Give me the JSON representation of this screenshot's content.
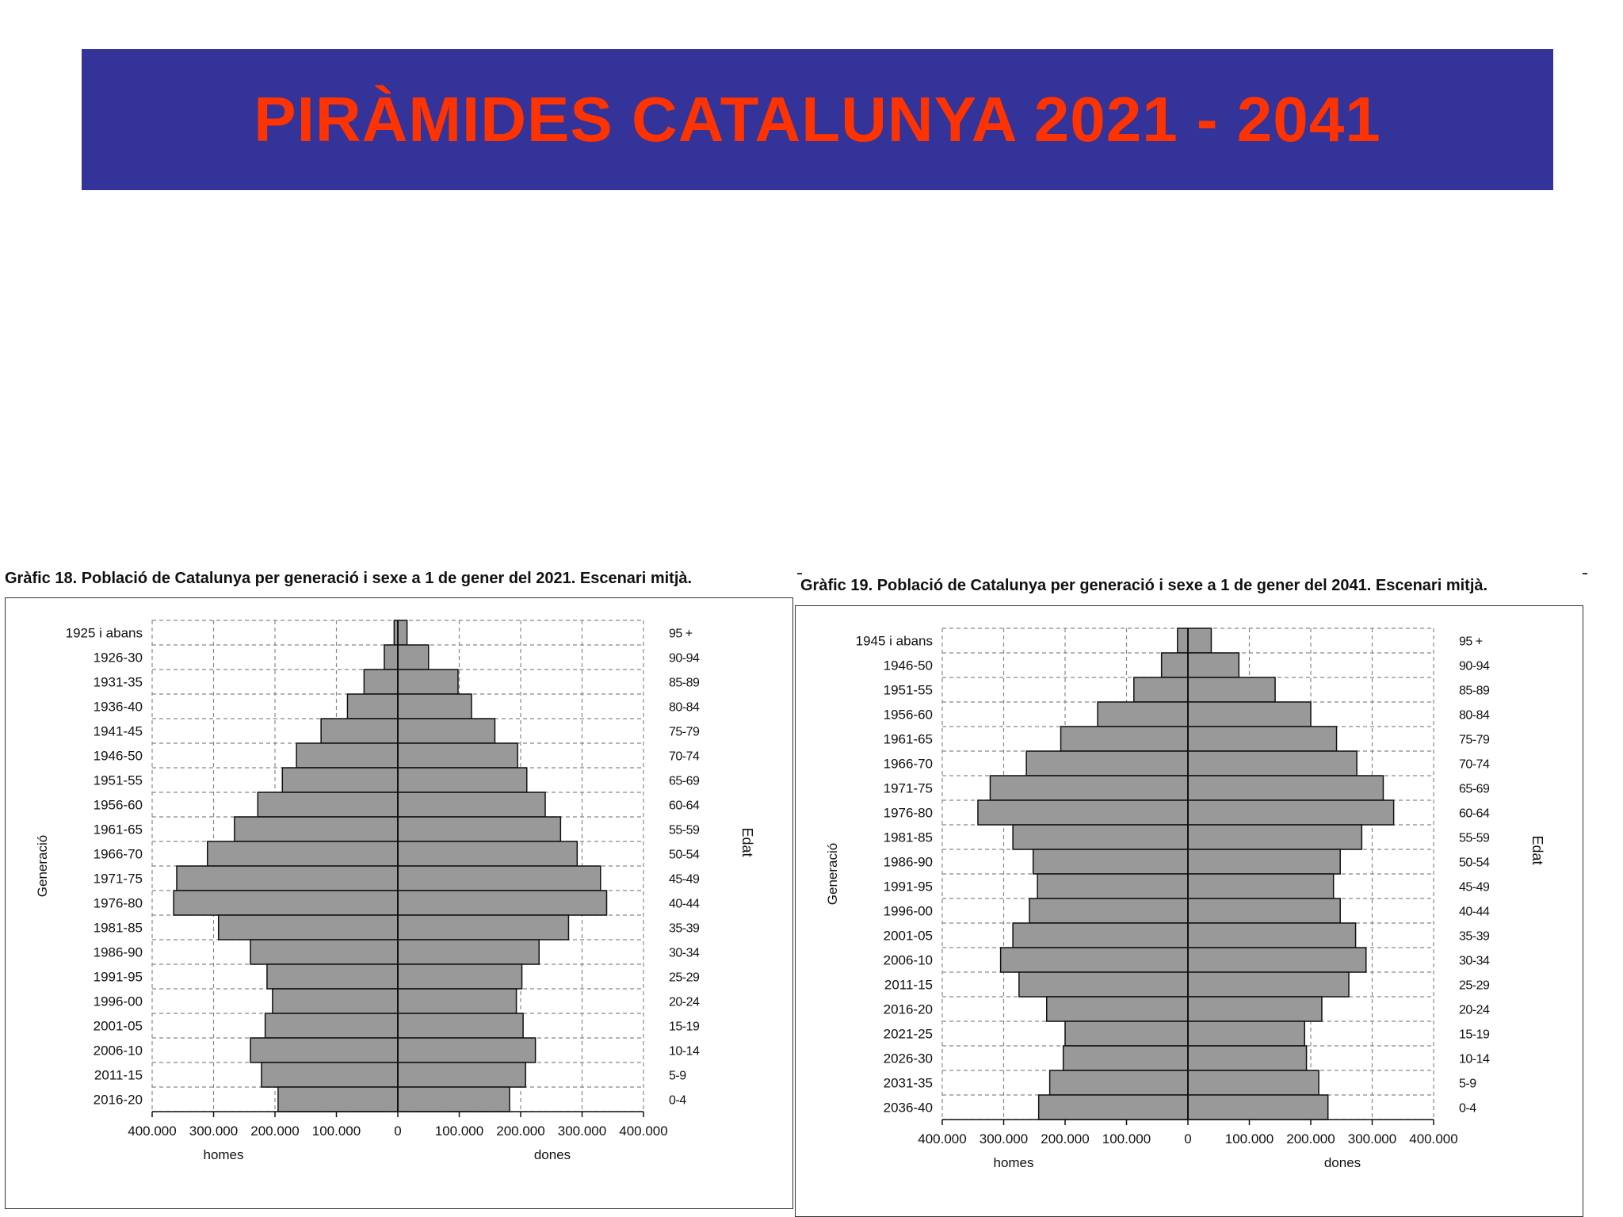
{
  "page": {
    "title": "PIRÀMIDES CATALUNYA 2021 - 2041",
    "colors": {
      "banner_bg": "#333399",
      "title": "#ff3300",
      "bar_fill": "#999999",
      "bar_stroke": "#111111",
      "grid": "#888888"
    }
  },
  "chart_data": [
    {
      "type": "bar",
      "orientation": "horizontal-population-pyramid",
      "title": "Gràfic 18. Població de Catalunya per generació i sexe a 1  de gener del 2021. Escenari mitjà.",
      "ylabel_left": "Generació",
      "ylabel_right": "Edat",
      "xlabel_left": "homes",
      "xlabel_right": "dones",
      "xlim": [
        -400000,
        400000
      ],
      "xticks": [
        "400.000",
        "300.000",
        "200.000",
        "100.000",
        "0",
        "100.000",
        "200.000",
        "300.000",
        "400.000"
      ],
      "grid": true,
      "categories_generation": [
        "1925 i abans",
        "1926-30",
        "1931-35",
        "1936-40",
        "1941-45",
        "1946-50",
        "1951-55",
        "1956-60",
        "1961-65",
        "1966-70",
        "1971-75",
        "1976-80",
        "1981-85",
        "1986-90",
        "1991-95",
        "1996-00",
        "2001-05",
        "2006-10",
        "2011-15",
        "2016-20"
      ],
      "categories_age": [
        "95 +",
        "90-94",
        "85-89",
        "80-84",
        "75-79",
        "70-74",
        "65-69",
        "60-64",
        "55-59",
        "50-54",
        "45-49",
        "40-44",
        "35-39",
        "30-34",
        "25-29",
        "20-24",
        "15-19",
        "10-14",
        "5-9",
        "0-4"
      ],
      "series": [
        {
          "name": "homes",
          "values": [
            6000,
            22000,
            55000,
            82000,
            125000,
            165000,
            188000,
            228000,
            266000,
            310000,
            360000,
            365000,
            292000,
            240000,
            213000,
            204000,
            216000,
            240000,
            222000,
            195000
          ]
        },
        {
          "name": "dones",
          "values": [
            15000,
            50000,
            98000,
            120000,
            158000,
            195000,
            210000,
            240000,
            265000,
            292000,
            330000,
            340000,
            278000,
            230000,
            202000,
            193000,
            204000,
            224000,
            208000,
            182000
          ]
        }
      ]
    },
    {
      "type": "bar",
      "orientation": "horizontal-population-pyramid",
      "title": "Gràfic 19. Població de Catalunya per generació i sexe a 1  de gener del 2041. Escenari mitjà.",
      "ylabel_left": "Generació",
      "ylabel_right": "Edat",
      "xlabel_left": "homes",
      "xlabel_right": "dones",
      "xlim": [
        -400000,
        400000
      ],
      "xticks": [
        "400.000",
        "300.000",
        "200.000",
        "100.000",
        "0",
        "100.000",
        "200.000",
        "300.000",
        "400.000"
      ],
      "grid": true,
      "categories_generation": [
        "1945 i abans",
        "1946-50",
        "1951-55",
        "1956-60",
        "1961-65",
        "1966-70",
        "1971-75",
        "1976-80",
        "1981-85",
        "1986-90",
        "1991-95",
        "1996-00",
        "2001-05",
        "2006-10",
        "2011-15",
        "2016-20",
        "2021-25",
        "2026-30",
        "2031-35",
        "2036-40"
      ],
      "categories_age": [
        "95 +",
        "90-94",
        "85-89",
        "80-84",
        "75-79",
        "70-74",
        "65-69",
        "60-64",
        "55-59",
        "50-54",
        "45-49",
        "40-44",
        "35-39",
        "30-34",
        "25-29",
        "20-24",
        "15-19",
        "10-14",
        "5-9",
        "0-4"
      ],
      "series": [
        {
          "name": "homes",
          "values": [
            17000,
            43000,
            88000,
            147000,
            207000,
            263000,
            322000,
            342000,
            285000,
            252000,
            245000,
            258000,
            285000,
            305000,
            275000,
            230000,
            200000,
            203000,
            225000,
            243000
          ]
        },
        {
          "name": "dones",
          "values": [
            38000,
            83000,
            142000,
            200000,
            242000,
            275000,
            318000,
            335000,
            283000,
            248000,
            237000,
            248000,
            273000,
            290000,
            262000,
            218000,
            190000,
            193000,
            213000,
            228000
          ]
        }
      ]
    }
  ]
}
